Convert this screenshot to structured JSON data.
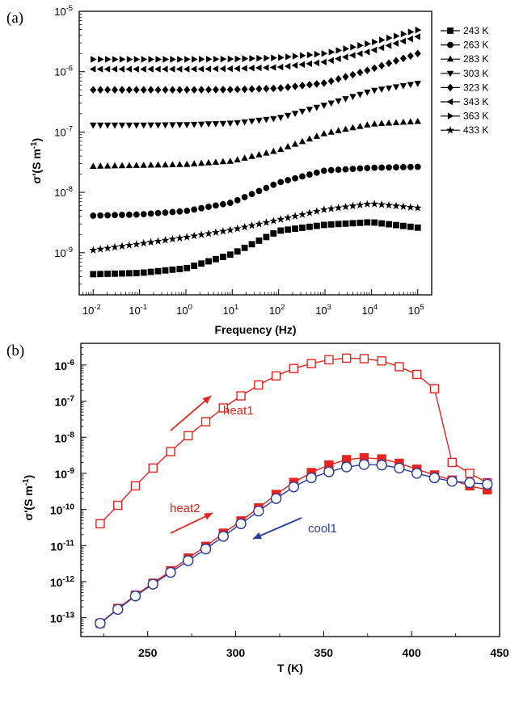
{
  "chart_data": [
    {
      "panel": "(a)",
      "type": "scatter",
      "xscale": "log",
      "yscale": "log",
      "xlabel": "Frequency (Hz)",
      "ylabel": "σ'(S m⁻¹)",
      "xlim": [
        0.005,
        200000
      ],
      "ylim": [
        2e-10,
        1e-05
      ],
      "xticks": [
        "10-2",
        "10-1",
        "100",
        "101",
        "102",
        "103",
        "104",
        "105"
      ],
      "yticks": [
        "10-9",
        "10-8",
        "10-7",
        "10-6",
        "10-5"
      ],
      "legend_position": "right",
      "series": [
        {
          "name": "243 K",
          "marker": "square",
          "x": [
            0.01,
            0.1,
            1,
            10,
            100,
            1000,
            10000,
            100000
          ],
          "values": [
            4.4e-10,
            4.6e-10,
            5.5e-10,
            9.5e-10,
            2.3e-09,
            2.9e-09,
            3.2e-09,
            2.6e-09
          ]
        },
        {
          "name": "263 K",
          "marker": "circle",
          "x": [
            0.01,
            0.1,
            1,
            10,
            100,
            1000,
            10000,
            100000
          ],
          "values": [
            4.1e-09,
            4.3e-09,
            4.9e-09,
            6.8e-09,
            1.45e-08,
            2.3e-08,
            2.55e-08,
            2.65e-08
          ]
        },
        {
          "name": "283 K",
          "marker": "triangle-up",
          "x": [
            0.01,
            0.1,
            1,
            10,
            100,
            1000,
            10000,
            100000
          ],
          "values": [
            2.7e-08,
            2.8e-08,
            2.9e-08,
            3.3e-08,
            5e-08,
            9.5e-08,
            1.35e-07,
            1.5e-07
          ]
        },
        {
          "name": "303 K",
          "marker": "triangle-down",
          "x": [
            0.01,
            0.1,
            1,
            10,
            100,
            1000,
            10000,
            100000
          ],
          "values": [
            1.3e-07,
            1.3e-07,
            1.32e-07,
            1.4e-07,
            1.7e-07,
            2.8e-07,
            4.8e-07,
            6.4e-07
          ]
        },
        {
          "name": "323 K",
          "marker": "diamond",
          "x": [
            0.01,
            0.1,
            1,
            10,
            100,
            1000,
            10000,
            100000
          ],
          "values": [
            5e-07,
            5e-07,
            5e-07,
            5.05e-07,
            5.3e-07,
            6.5e-07,
            1.1e-06,
            2e-06
          ]
        },
        {
          "name": "343 K",
          "marker": "triangle-left",
          "x": [
            0.01,
            0.1,
            1,
            10,
            100,
            1000,
            10000,
            100000
          ],
          "values": [
            1.1e-06,
            1.1e-06,
            1.1e-06,
            1.12e-06,
            1.18e-06,
            1.45e-06,
            2.2e-06,
            3.8e-06
          ]
        },
        {
          "name": "363 K",
          "marker": "triangle-right",
          "x": [
            0.01,
            0.1,
            1,
            10,
            100,
            1000,
            10000,
            100000
          ],
          "values": [
            1.6e-06,
            1.6e-06,
            1.6e-06,
            1.62e-06,
            1.7e-06,
            2e-06,
            3e-06,
            4.9e-06
          ]
        },
        {
          "name": "433 K",
          "marker": "star",
          "x": [
            0.01,
            0.1,
            1,
            10,
            100,
            1000,
            10000,
            100000
          ],
          "values": [
            1.1e-09,
            1.4e-09,
            1.8e-09,
            2.4e-09,
            3.5e-09,
            5.2e-09,
            6.5e-09,
            5.5e-09
          ]
        }
      ]
    },
    {
      "panel": "(b)",
      "type": "line",
      "yscale": "log",
      "xlabel": "T (K)",
      "ylabel": "σ'(S m⁻¹)",
      "xlim": [
        212,
        450
      ],
      "ylim": [
        3e-14,
        4e-06
      ],
      "xticks": [
        "250",
        "300",
        "350",
        "400",
        "450"
      ],
      "yticks": [
        "10-13",
        "10-12",
        "10-11",
        "10-10",
        "10-9",
        "10-8",
        "10-7",
        "10-6"
      ],
      "annotations": [
        {
          "text": "heat1",
          "color": "#e8231e"
        },
        {
          "text": "heat2",
          "color": "#e8231e"
        },
        {
          "text": "cool1",
          "color": "#2b3a9c"
        }
      ],
      "series": [
        {
          "name": "heat1",
          "marker": "open-square",
          "color": "#e8231e",
          "x": [
            223,
            233,
            243,
            253,
            263,
            273,
            283,
            293,
            303,
            313,
            323,
            333,
            343,
            353,
            363,
            373,
            383,
            393,
            403,
            413,
            423,
            433,
            443
          ],
          "values": [
            4e-11,
            1.3e-10,
            4.5e-10,
            1.4e-09,
            4e-09,
            1.1e-08,
            2.7e-08,
            6.5e-08,
            1.4e-07,
            2.8e-07,
            5e-07,
            8e-07,
            1.1e-06,
            1.4e-06,
            1.55e-06,
            1.5e-06,
            1.3e-06,
            9e-07,
            5.5e-07,
            2.2e-07,
            2e-09,
            1e-09,
            5.5e-10
          ]
        },
        {
          "name": "heat2",
          "marker": "filled-square",
          "color": "#e8231e",
          "x": [
            223,
            233,
            243,
            253,
            263,
            273,
            283,
            293,
            303,
            313,
            323,
            333,
            343,
            353,
            363,
            373,
            383,
            393,
            403,
            413,
            423,
            433,
            443
          ],
          "values": [
            7e-14,
            1.8e-13,
            4.2e-13,
            9e-13,
            2e-12,
            4.5e-12,
            9.5e-12,
            2.2e-11,
            4.8e-11,
            1.1e-10,
            2.6e-10,
            5.6e-10,
            1.05e-09,
            1.7e-09,
            2.4e-09,
            2.7e-09,
            2.5e-09,
            1.9e-09,
            1.3e-09,
            9e-10,
            6.5e-10,
            4.5e-10,
            3.5e-10
          ]
        },
        {
          "name": "cool1",
          "marker": "open-circle",
          "color": "#2b3a9c",
          "x": [
            223,
            233,
            243,
            253,
            263,
            273,
            283,
            293,
            303,
            313,
            323,
            333,
            343,
            353,
            363,
            373,
            383,
            393,
            403,
            413,
            423,
            433,
            443
          ],
          "values": [
            7e-14,
            1.7e-13,
            4e-13,
            8.5e-13,
            1.8e-12,
            3.8e-12,
            8e-12,
            1.8e-11,
            4e-11,
            9e-11,
            2e-10,
            4.2e-10,
            7.5e-10,
            1.1e-09,
            1.5e-09,
            1.75e-09,
            1.7e-09,
            1.4e-09,
            1e-09,
            7.5e-10,
            6e-10,
            5.5e-10,
            5e-10
          ]
        }
      ]
    }
  ]
}
